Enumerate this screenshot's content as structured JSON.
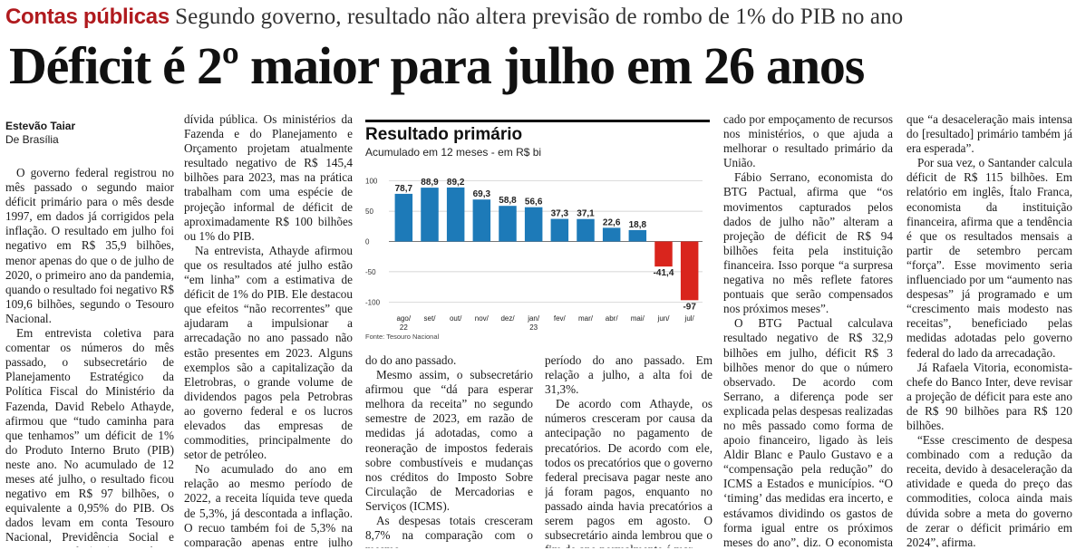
{
  "kicker": {
    "section": "Contas públicas",
    "dek": "Segundo governo, resultado não altera previsão de rombo de 1% do PIB no ano"
  },
  "headline": "Déficit é 2º maior para julho em 26 anos",
  "byline": {
    "author": "Estevão Taiar",
    "location": "De Brasília"
  },
  "article": {
    "col1": [
      "O governo federal registrou no mês passado o segundo maior déficit primário para o mês desde 1997, em dados já corrigidos pela inflação. O resultado em julho foi negativo em R$ 35,9 bilhões, menor apenas do que o de julho de 2020, o primeiro ano da pandemia, quando o resultado foi negativo R$ 109,6 bilhões, segundo o Tesouro Nacional.",
      "Em entrevista coletiva para comentar os números do mês passado, o subsecretário de Planejamento Estratégico da Política Fiscal do Ministério da Fazenda, David Rebelo Athayde, afirmou que “tudo caminha para que tenhamos” um déficit de 1% do Produto Interno Bruto (PIB) neste ano. No acumulado de 12 meses até julho, o resultado ficou negativo em R$ 97 bilhões, o equivalente a 0,95% do PIB. Os dados levam em conta Tesouro Nacional, Previdência Social e Banco Central (BC) e excluem despesas com a"
    ],
    "col2": [
      "dívida pública. Os ministérios da Fazenda e do Planejamento e Orçamento projetam atualmente resultado negativo de R$ 145,4 bilhões para 2023, mas na prática trabalham com uma espécie de projeção informal de déficit de aproximadamente R$ 100 bilhões ou 1% do PIB.",
      "Na entrevista, Athayde afirmou que os resultados até julho estão “em linha” com a estimativa de déficit de 1% do PIB. Ele destacou que efeitos “não recorrentes” que ajudaram a impulsionar a arrecadação no ano passado não estão presentes em 2023. Alguns exemplos são a capitalização da Eletrobras, o grande volume de dividendos pagos pela Petrobras ao governo federal e os lucros elevados das empresas de commodities, principalmente do setor de petróleo.",
      "No acumulado do ano em relação ao mesmo período de 2022, a receita líquida teve queda de 5,3%, já descontada a inflação. O recuo também foi de 5,3% na comparação apenas entre julho deste ano e o mesmo perío-"
    ],
    "col3": [
      "do do ano passado.",
      "Mesmo assim, o subsecretário afirmou que “dá para esperar melhora da receita” no segundo semestre de 2023, em razão de medidas já adotadas, como a reoneração de impostos federais sobre combustíveis e mudanças nos créditos do Imposto Sobre Circulação de Mercadorias e Serviços (ICMS).",
      "As despesas totais cresceram 8,7% na comparação com o mesmo"
    ],
    "col4": [
      "período do ano passado. Em relação a julho, a alta foi de 31,3%.",
      "De acordo com Athayde, os números cresceram por causa da antecipação no pagamento de precatórios. De acordo com ele, todos os precatórios que o governo federal precisava pagar neste ano já foram pagos, enquanto no passado ainda havia precatórios a serem pagos em agosto. O subsecretário ainda lembrou que o fim do ano normalmente é mar-"
    ],
    "col5": [
      "cado por empoçamento de recursos nos ministérios, o que ajuda a melhorar o resultado primário da União.",
      "Fábio Serrano, economista do BTG Pactual, afirma que “os movimentos capturados pelos dados de julho não” alteram a projeção de déficit de R$ 94 bilhões feita pela instituição financeira. Isso porque “a surpresa negativa no mês reflete fatores pontuais que serão compensados nos próximos meses”.",
      "O BTG Pactual calculava resultado negativo de R$ 32,9 bilhões em julho, déficit R$ 3 bilhões menor do que o número observado. De acordo com Serrano, a diferença pode ser explicada pelas despesas realizadas no mês passado como forma de apoio financeiro, ligado às leis Aldir Blanc e Paulo Gustavo e a “compensação pela redução” do ICMS a Estados e municípios. “O ‘timing’ das medidas era incerto, e estávamos dividindo os gastos de forma igual entre os próximos meses do ano”, diz. O economista ainda lembra"
    ],
    "col6": [
      "que “a desaceleração mais intensa do [resultado] primário também já era esperada”.",
      "Por sua vez, o Santander calcula déficit de R$ 115 bilhões. Em relatório em inglês, Ítalo Franca, economista da instituição financeira, afirma que a tendência é que os resultados mensais a partir de setembro percam “força”. Esse movimento seria influenciado por um “aumento nas despesas” já programado e um “crescimento mais modesto nas receitas”, beneficiado pelas medidas adotadas pelo governo federal do lado da arrecadação.",
      "Já Rafaela Vitoria, economista-chefe do Banco Inter, deve revisar a projeção de déficit para este ano de R$ 90 bilhões para R$ 120 bilhões.",
      "“Esse crescimento de despesa combinado com a redução da receita, devido à desaceleração da atividade e queda do preço das commodities, coloca ainda mais dúvida sobre a meta do governo de zerar o déficit primário em 2024”, afirma."
    ]
  },
  "colors": {
    "positive": "#1d7ab8",
    "negative": "#d9251d",
    "kicker": "#b01a1e"
  },
  "chart_data": {
    "type": "bar",
    "title": "Resultado primário",
    "subtitle": "Acumulado em 12 meses - em R$ bi",
    "source": "Fonte: Tesouro Nacional",
    "categories": [
      "ago/\n22",
      "set/",
      "out/",
      "nov/",
      "dez/",
      "jan/\n23",
      "fev/",
      "mar/",
      "abr/",
      "mai/",
      "jun/",
      "jul/"
    ],
    "values": [
      78.7,
      88.9,
      89.2,
      69.3,
      58.8,
      56.6,
      37.3,
      37.1,
      22.6,
      18.8,
      -41.4,
      -97
    ],
    "value_labels": [
      "78,7",
      "88,9",
      "89,2",
      "69,3",
      "58,8",
      "56,6",
      "37,3",
      "37,1",
      "22,6",
      "18,8",
      "-41,4",
      "-97"
    ],
    "yticks": [
      100,
      50,
      0,
      -50,
      -100
    ],
    "ylim": [
      -110,
      110
    ],
    "grid": true,
    "xlabel": "",
    "ylabel": ""
  }
}
